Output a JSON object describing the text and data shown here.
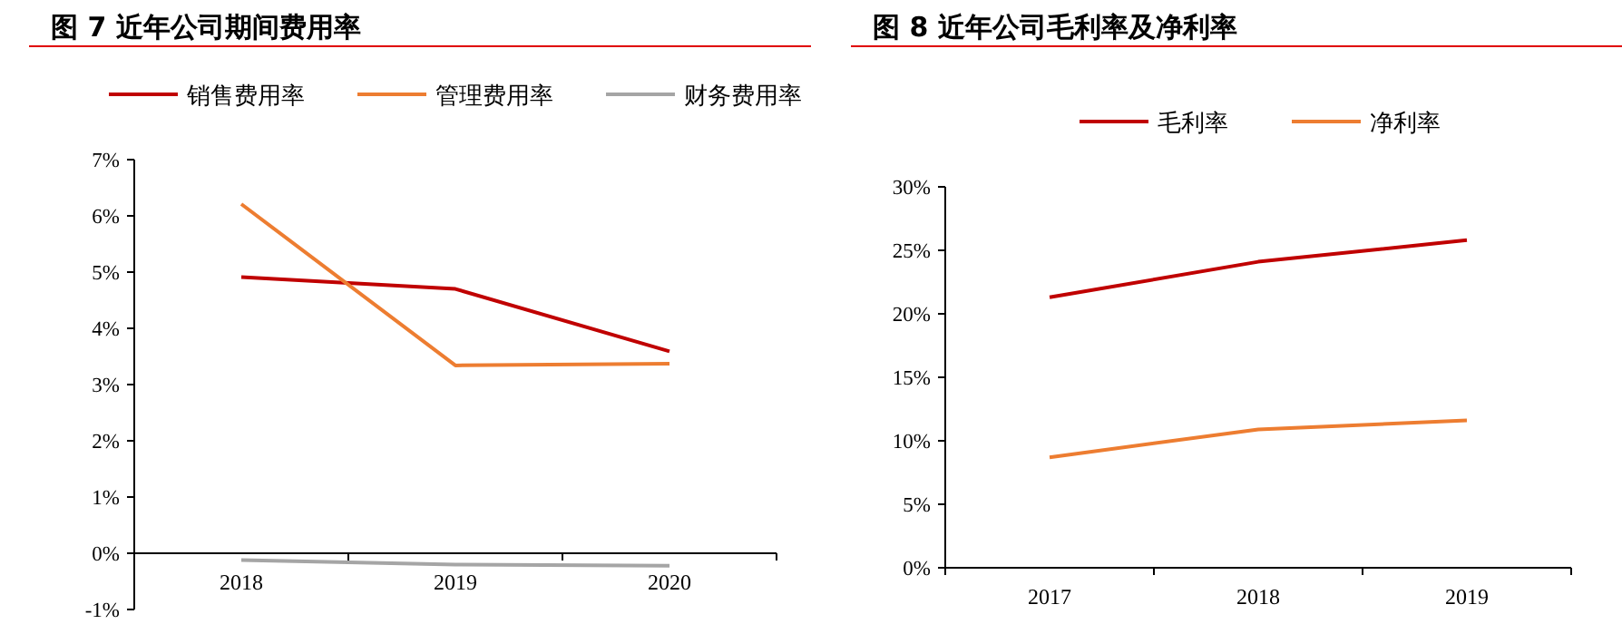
{
  "chart_data": [
    {
      "type": "line",
      "title": "图 7 近年公司期间费用率",
      "categories": [
        "2018",
        "2019",
        "2020"
      ],
      "legend": "top",
      "grid": false,
      "ylim": [
        -1,
        7
      ],
      "yticks": [
        {
          "value": -1,
          "label": "-1%"
        },
        {
          "value": 0,
          "label": "0%"
        },
        {
          "value": 1,
          "label": "1%"
        },
        {
          "value": 2,
          "label": "2%"
        },
        {
          "value": 3,
          "label": "3%"
        },
        {
          "value": 4,
          "label": "4%"
        },
        {
          "value": 5,
          "label": "5%"
        },
        {
          "value": 6,
          "label": "6%"
        },
        {
          "value": 7,
          "label": "7%"
        }
      ],
      "series": [
        {
          "name": "销售费用率",
          "color": "#c00000",
          "values": [
            4.91,
            4.7,
            3.59
          ]
        },
        {
          "name": "管理费用率",
          "color": "#ed7d31",
          "values": [
            6.21,
            3.34,
            3.37
          ]
        },
        {
          "name": "财务费用率",
          "color": "#a5a5a5",
          "values": [
            -0.12,
            -0.2,
            -0.22
          ]
        }
      ]
    },
    {
      "type": "line",
      "title": "图 8 近年公司毛利率及净利率",
      "categories": [
        "2017",
        "2018",
        "2019"
      ],
      "legend": "top",
      "grid": false,
      "ylim": [
        0,
        30
      ],
      "yticks": [
        {
          "value": 0,
          "label": "0%"
        },
        {
          "value": 5,
          "label": "5%"
        },
        {
          "value": 10,
          "label": "10%"
        },
        {
          "value": 15,
          "label": "15%"
        },
        {
          "value": 20,
          "label": "20%"
        },
        {
          "value": 25,
          "label": "25%"
        },
        {
          "value": 30,
          "label": "30%"
        }
      ],
      "series": [
        {
          "name": "毛利率",
          "color": "#c00000",
          "values": [
            21.3,
            24.1,
            25.8
          ]
        },
        {
          "name": "净利率",
          "color": "#ed7d31",
          "values": [
            8.7,
            10.9,
            11.6
          ]
        }
      ]
    }
  ]
}
